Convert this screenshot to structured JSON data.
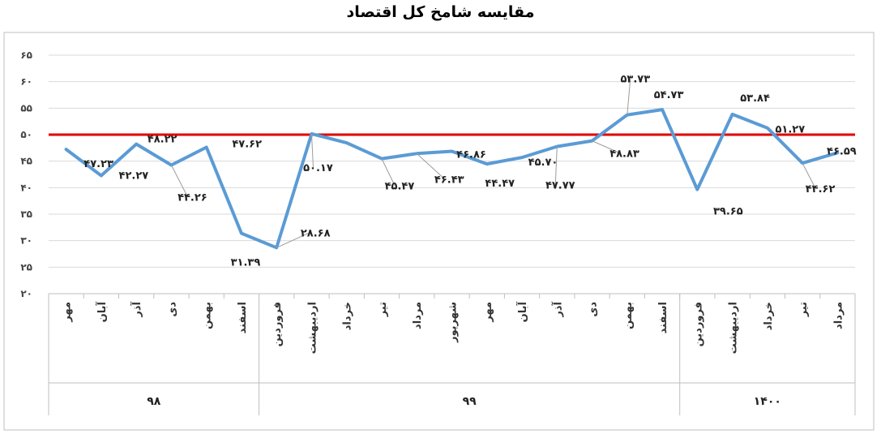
{
  "chart_data": {
    "type": "line",
    "title": "مقایسه شامخ کل اقتصاد",
    "ylim": [
      20,
      65
    ],
    "yticks": [
      "۲۰",
      "۲۵",
      "۳۰",
      "۳۵",
      "۴۰",
      "۴۵",
      "۵۰",
      "۵۵",
      "۶۰",
      "۶۵"
    ],
    "reference_line": 50,
    "colors": {
      "series": "#5b9bd5",
      "reference": "#e00000",
      "axis": "#bfbfbf",
      "frame": "#bfbfbf"
    },
    "grid": true,
    "legend": "none",
    "year_groups": [
      {
        "year": "۹۸",
        "count": 6
      },
      {
        "year": "۹۹",
        "count": 12
      },
      {
        "year": "۱۴۰۰",
        "count": 5
      }
    ],
    "categories": [
      "مهر",
      "آبان",
      "آذر",
      "دی",
      "بهمن",
      "اسفند",
      "فروردین",
      "اردیبهشت",
      "خرداد",
      "تیر",
      "مرداد",
      "شهریور",
      "مهر",
      "آبان",
      "آذر",
      "دی",
      "بهمن",
      "اسفند",
      "فروردین",
      "اردیبهشت",
      "خرداد",
      "تیر",
      "مرداد"
    ],
    "values": [
      47.23,
      42.27,
      48.22,
      44.26,
      47.62,
      31.39,
      28.68,
      50.17,
      48.45,
      45.47,
      46.43,
      46.86,
      44.47,
      45.7,
      47.77,
      48.83,
      53.73,
      54.73,
      39.65,
      53.84,
      51.27,
      44.62,
      46.59
    ],
    "data_labels": [
      "۴۷.۲۳",
      "۴۲.۲۷",
      "۴۸.۲۲",
      "۴۴.۲۶",
      "۴۷.۶۲",
      "۳۱.۳۹",
      "۲۸.۶۸",
      "۵۰.۱۷",
      "",
      "۴۵.۴۷",
      "۴۶.۴۳",
      "۴۶.۸۶",
      "۴۴.۴۷",
      "۴۵.۷۰",
      "۴۷.۷۷",
      "۴۸.۸۳",
      "۵۳.۷۳",
      "۵۴.۷۳",
      "۳۹.۶۵",
      "۵۳.۸۴",
      "۵۱.۲۷",
      "۴۴.۶۲",
      "۴۶.۵۹"
    ]
  }
}
